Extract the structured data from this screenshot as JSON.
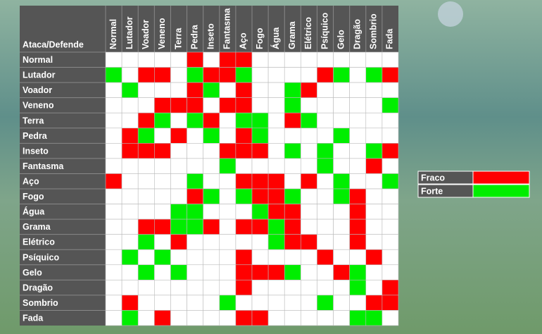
{
  "table": {
    "corner": "Ataca/Defende",
    "columns": [
      "Normal",
      "Lutador",
      "Voador",
      "Veneno",
      "Terra",
      "Pedra",
      "Inseto",
      "Fantasma",
      "Aço",
      "Fogo",
      "Água",
      "Grama",
      "Elétrico",
      "Psíquico",
      "Gelo",
      "Dragão",
      "Sombrio",
      "Fada"
    ],
    "rows": [
      "Normal",
      "Lutador",
      "Voador",
      "Veneno",
      "Terra",
      "Pedra",
      "Inseto",
      "Fantasma",
      "Aço",
      "Fogo",
      "Água",
      "Grama",
      "Elétrico",
      "Psíquico",
      "Gelo",
      "Dragão",
      "Sombrio",
      "Fada"
    ],
    "cells": [
      [
        0,
        0,
        0,
        0,
        0,
        -1,
        0,
        -1,
        -1,
        0,
        0,
        0,
        0,
        0,
        0,
        0,
        0,
        0
      ],
      [
        1,
        0,
        -1,
        -1,
        0,
        1,
        -1,
        -1,
        1,
        0,
        0,
        0,
        0,
        -1,
        1,
        0,
        1,
        -1
      ],
      [
        0,
        1,
        0,
        0,
        0,
        -1,
        1,
        0,
        -1,
        0,
        0,
        1,
        -1,
        0,
        0,
        0,
        0,
        0
      ],
      [
        0,
        0,
        0,
        -1,
        -1,
        -1,
        0,
        -1,
        -1,
        0,
        0,
        1,
        0,
        0,
        0,
        0,
        0,
        1
      ],
      [
        0,
        0,
        -1,
        1,
        0,
        1,
        -1,
        0,
        1,
        1,
        0,
        -1,
        1,
        0,
        0,
        0,
        0,
        0
      ],
      [
        0,
        -1,
        1,
        0,
        -1,
        0,
        1,
        0,
        -1,
        1,
        0,
        0,
        0,
        0,
        1,
        0,
        0,
        0
      ],
      [
        0,
        -1,
        -1,
        -1,
        0,
        0,
        0,
        -1,
        -1,
        -1,
        0,
        1,
        0,
        1,
        0,
        0,
        1,
        -1
      ],
      [
        0,
        0,
        0,
        0,
        0,
        0,
        0,
        1,
        0,
        0,
        0,
        0,
        0,
        1,
        0,
        0,
        -1,
        0
      ],
      [
        -1,
        0,
        0,
        0,
        0,
        1,
        0,
        0,
        -1,
        -1,
        -1,
        0,
        -1,
        0,
        1,
        0,
        0,
        1
      ],
      [
        0,
        0,
        0,
        0,
        0,
        -1,
        1,
        0,
        1,
        -1,
        -1,
        1,
        0,
        0,
        1,
        -1,
        0,
        0
      ],
      [
        0,
        0,
        0,
        0,
        1,
        1,
        0,
        0,
        0,
        1,
        -1,
        -1,
        0,
        0,
        0,
        -1,
        0,
        0
      ],
      [
        0,
        0,
        -1,
        -1,
        1,
        1,
        -1,
        0,
        -1,
        -1,
        1,
        -1,
        0,
        0,
        0,
        -1,
        0,
        0
      ],
      [
        0,
        0,
        1,
        0,
        -1,
        0,
        0,
        0,
        0,
        0,
        1,
        -1,
        -1,
        0,
        0,
        -1,
        0,
        0
      ],
      [
        0,
        1,
        0,
        1,
        0,
        0,
        0,
        0,
        -1,
        0,
        0,
        0,
        0,
        -1,
        0,
        0,
        -1,
        0
      ],
      [
        0,
        0,
        1,
        0,
        1,
        0,
        0,
        0,
        -1,
        -1,
        -1,
        1,
        0,
        0,
        -1,
        1,
        0,
        0
      ],
      [
        0,
        0,
        0,
        0,
        0,
        0,
        0,
        0,
        -1,
        0,
        0,
        0,
        0,
        0,
        0,
        1,
        0,
        -1
      ],
      [
        0,
        -1,
        0,
        0,
        0,
        0,
        0,
        1,
        0,
        0,
        0,
        0,
        0,
        1,
        0,
        0,
        -1,
        -1
      ],
      [
        0,
        1,
        0,
        -1,
        0,
        0,
        0,
        0,
        -1,
        -1,
        0,
        0,
        0,
        0,
        0,
        1,
        1,
        0
      ]
    ]
  },
  "legend": [
    {
      "label": "Fraco",
      "value": -1,
      "color": "#ff0000"
    },
    {
      "label": "Forte",
      "value": 1,
      "color": "#00ee00"
    }
  ]
}
